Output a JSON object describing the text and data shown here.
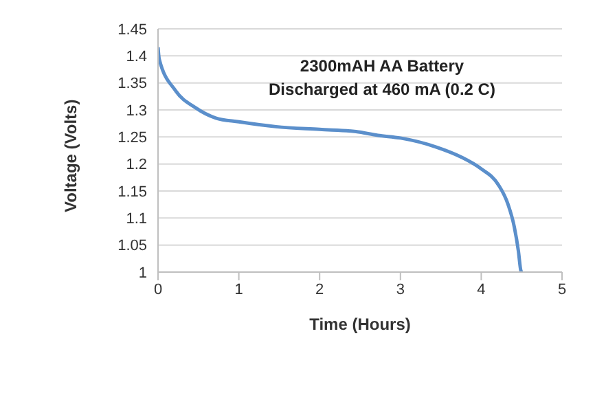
{
  "chart_data": {
    "type": "line",
    "title": "2300mAH AA Battery",
    "subtitle": "Discharged at 460 mA (0.2 C)",
    "xlabel": "Time (Hours)",
    "ylabel": "Voltage (Volts)",
    "series": [
      {
        "color": "#5b8fcb",
        "x": [
          0,
          0.015,
          0.215,
          0.465,
          0.715,
          1,
          1.46,
          2,
          2.45,
          2.72,
          3,
          3.45,
          3.75,
          4,
          4.21,
          4.33,
          4.41,
          4.46,
          4.49,
          4.5
        ],
        "values": [
          1.416,
          1.394,
          1.336,
          1.304,
          1.285,
          1.278,
          1.269,
          1.264,
          1.26,
          1.253,
          1.248,
          1.231,
          1.213,
          1.191,
          1.162,
          1.126,
          1.083,
          1.039,
          1.003,
          1.0
        ]
      }
    ],
    "xlim": [
      0,
      5
    ],
    "xticks": [
      0,
      1,
      2,
      3,
      4,
      5
    ],
    "ylim": [
      1,
      1.45
    ],
    "yticks": [
      1,
      1.05,
      1.1,
      1.15,
      1.2,
      1.25,
      1.3,
      1.35,
      1.4,
      1.45
    ],
    "grid": "y",
    "legend": false,
    "marker": "none",
    "line_style": "solid"
  }
}
